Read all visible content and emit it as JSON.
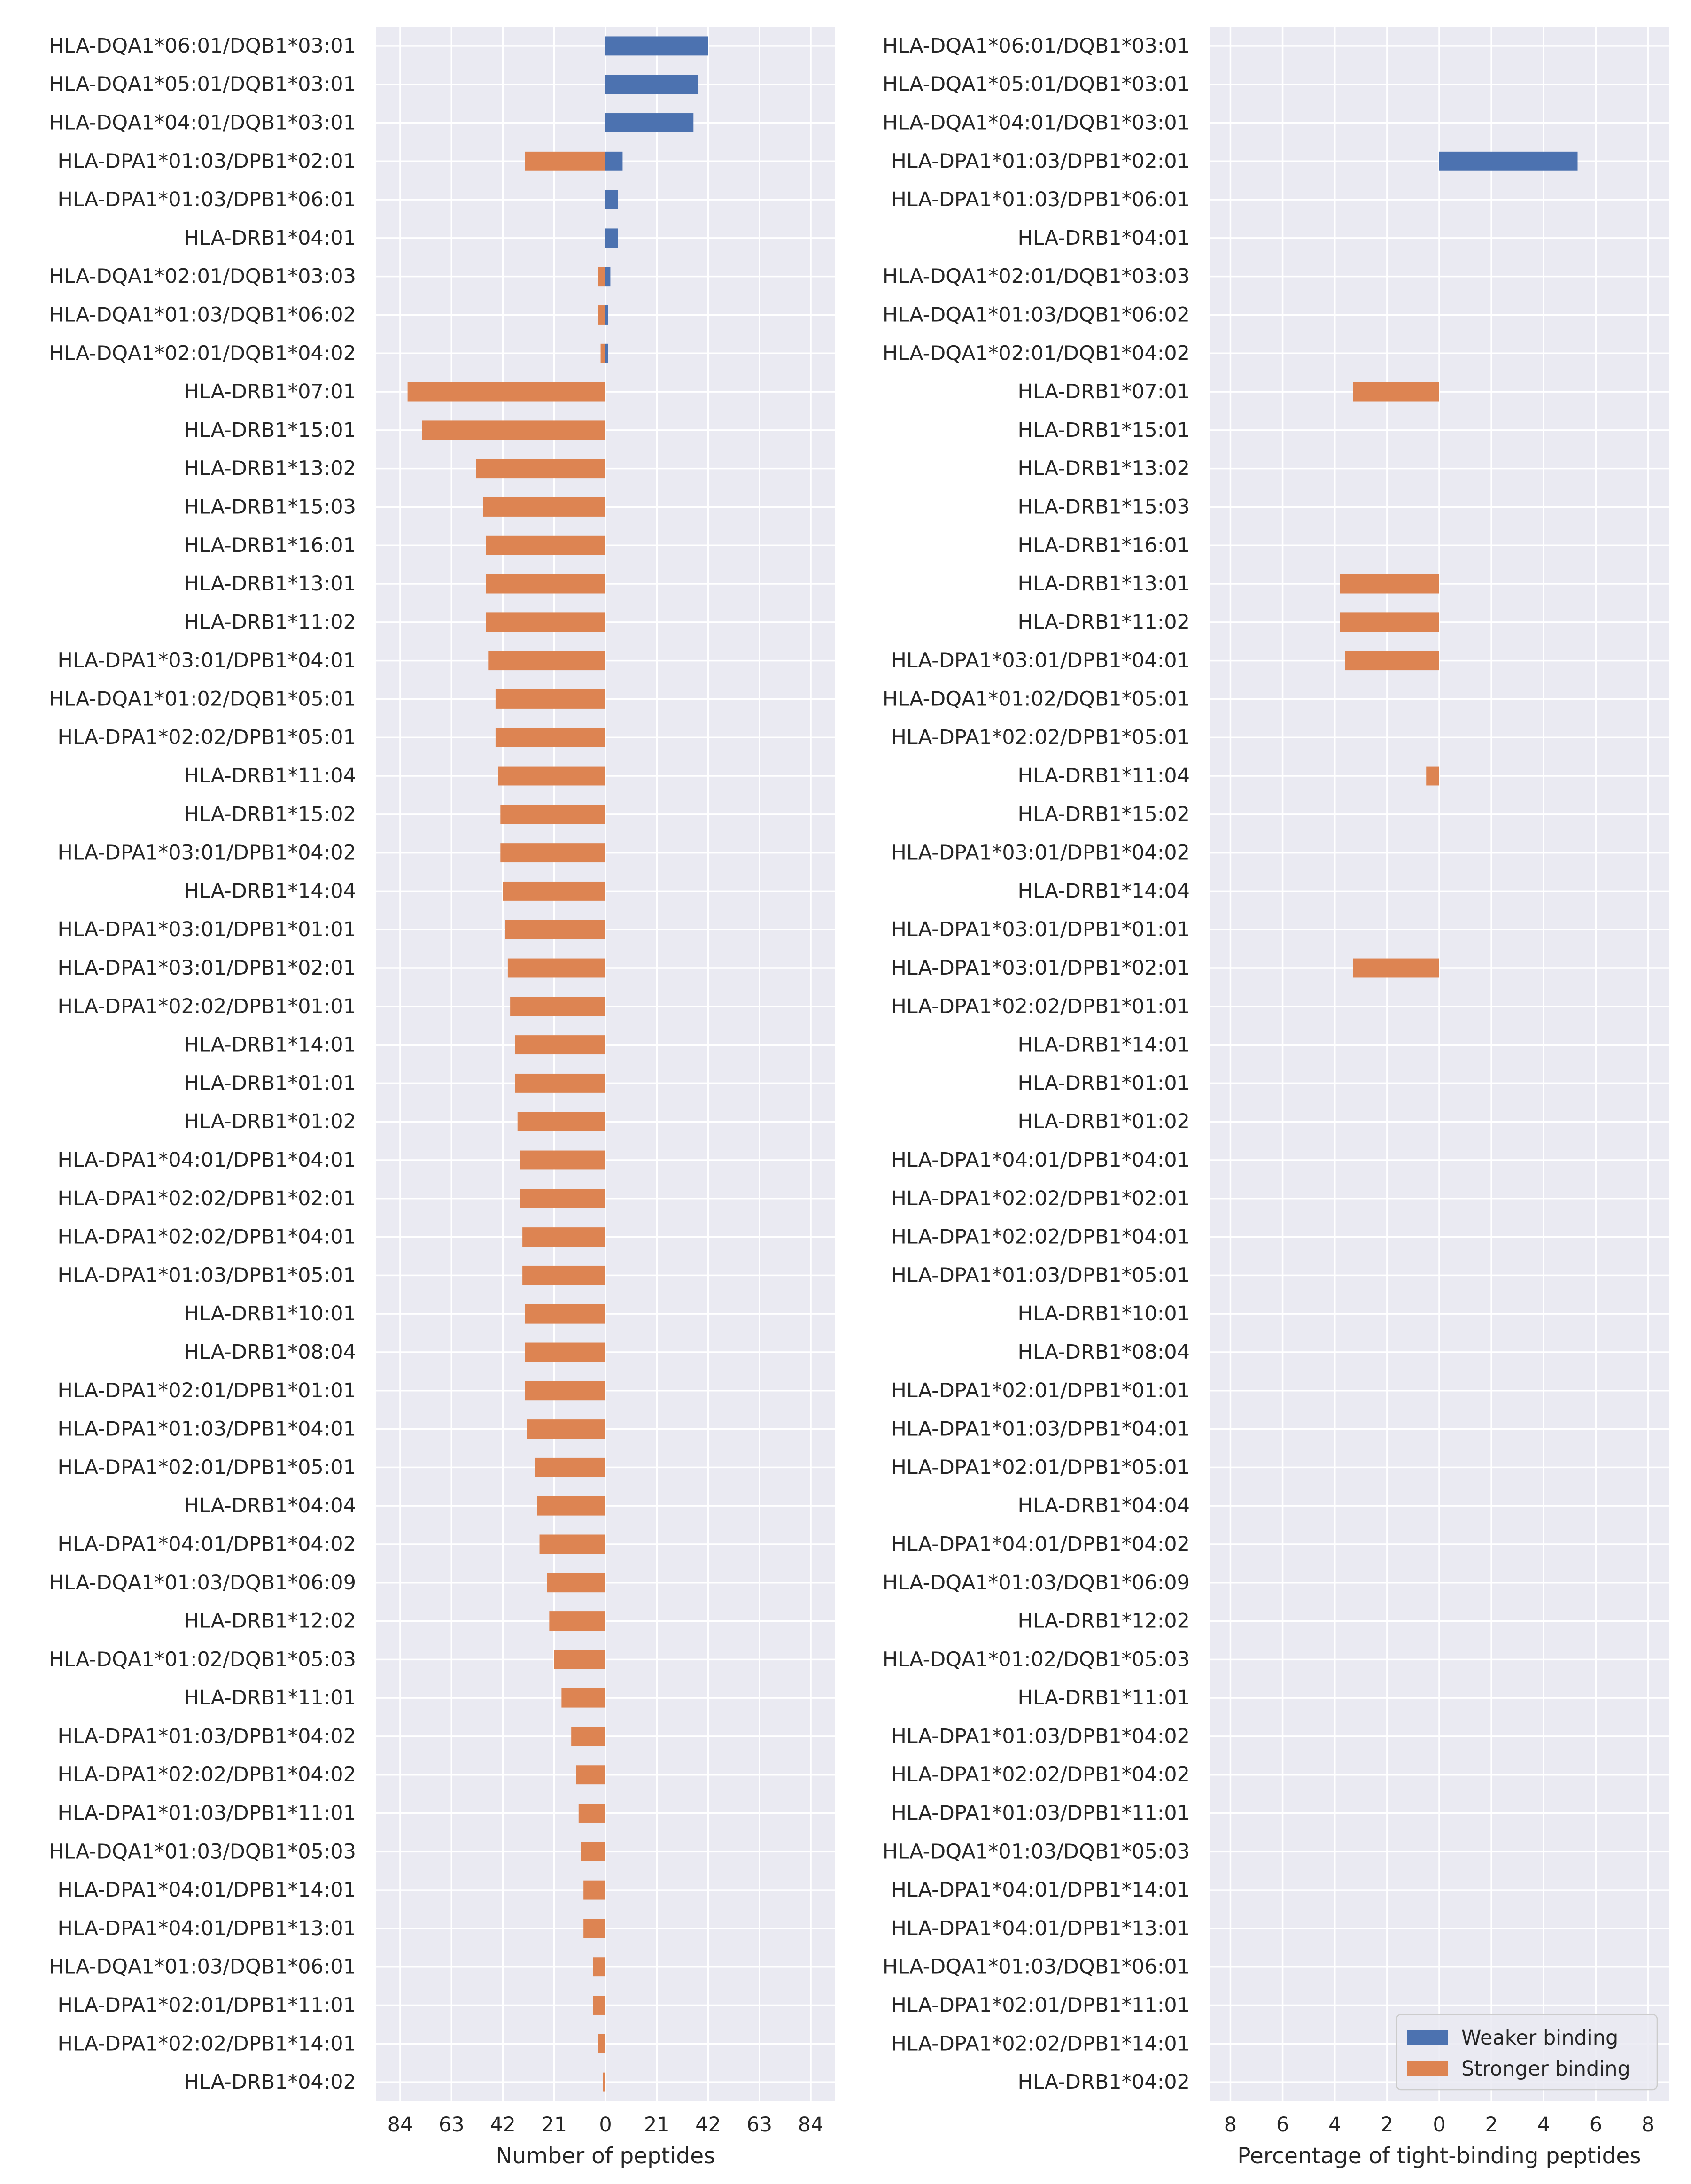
{
  "colors": {
    "plot_bg": "#eaeaf2",
    "grid": "#ffffff",
    "text": "#262626",
    "weaker": "#4c72b0",
    "stronger": "#dd8452"
  },
  "chart_data": [
    {
      "type": "bar",
      "orientation": "horizontal",
      "diverging": true,
      "xlabel": "Number of peptides",
      "xlim": [
        -94,
        94
      ],
      "xticks": [
        -84,
        -63,
        -42,
        -21,
        0,
        21,
        42,
        63,
        84
      ],
      "xtick_labels": [
        "84",
        "63",
        "42",
        "21",
        "0",
        "21",
        "42",
        "63",
        "84"
      ],
      "grid": true,
      "categories": [
        "HLA-DQA1*06:01/DQB1*03:01",
        "HLA-DQA1*05:01/DQB1*03:01",
        "HLA-DQA1*04:01/DQB1*03:01",
        "HLA-DPA1*01:03/DPB1*02:01",
        "HLA-DPA1*01:03/DPB1*06:01",
        "HLA-DRB1*04:01",
        "HLA-DQA1*02:01/DQB1*03:03",
        "HLA-DQA1*01:03/DQB1*06:02",
        "HLA-DQA1*02:01/DQB1*04:02",
        "HLA-DRB1*07:01",
        "HLA-DRB1*15:01",
        "HLA-DRB1*13:02",
        "HLA-DRB1*15:03",
        "HLA-DRB1*16:01",
        "HLA-DRB1*13:01",
        "HLA-DRB1*11:02",
        "HLA-DPA1*03:01/DPB1*04:01",
        "HLA-DQA1*01:02/DQB1*05:01",
        "HLA-DPA1*02:02/DPB1*05:01",
        "HLA-DRB1*11:04",
        "HLA-DRB1*15:02",
        "HLA-DPA1*03:01/DPB1*04:02",
        "HLA-DRB1*14:04",
        "HLA-DPA1*03:01/DPB1*01:01",
        "HLA-DPA1*03:01/DPB1*02:01",
        "HLA-DPA1*02:02/DPB1*01:01",
        "HLA-DRB1*14:01",
        "HLA-DRB1*01:01",
        "HLA-DRB1*01:02",
        "HLA-DPA1*04:01/DPB1*04:01",
        "HLA-DPA1*02:02/DPB1*02:01",
        "HLA-DPA1*02:02/DPB1*04:01",
        "HLA-DPA1*01:03/DPB1*05:01",
        "HLA-DRB1*10:01",
        "HLA-DRB1*08:04",
        "HLA-DPA1*02:01/DPB1*01:01",
        "HLA-DPA1*01:03/DPB1*04:01",
        "HLA-DPA1*02:01/DPB1*05:01",
        "HLA-DRB1*04:04",
        "HLA-DPA1*04:01/DPB1*04:02",
        "HLA-DQA1*01:03/DQB1*06:09",
        "HLA-DRB1*12:02",
        "HLA-DQA1*01:02/DQB1*05:03",
        "HLA-DRB1*11:01",
        "HLA-DPA1*01:03/DPB1*04:02",
        "HLA-DPA1*02:02/DPB1*04:02",
        "HLA-DPA1*01:03/DPB1*11:01",
        "HLA-DQA1*01:03/DQB1*05:03",
        "HLA-DPA1*04:01/DPB1*14:01",
        "HLA-DPA1*04:01/DPB1*13:01",
        "HLA-DQA1*01:03/DQB1*06:01",
        "HLA-DPA1*02:01/DPB1*11:01",
        "HLA-DPA1*02:02/DPB1*14:01",
        "HLA-DRB1*04:02"
      ],
      "series": [
        {
          "name": "Weaker binding",
          "side": "right",
          "values": [
            42,
            38,
            36,
            7,
            5,
            5,
            2,
            1,
            1,
            0,
            0,
            0,
            0,
            0,
            0,
            0,
            0,
            0,
            0,
            0,
            0,
            0,
            0,
            0,
            0,
            0,
            0,
            0,
            0,
            0,
            0,
            0,
            0,
            0,
            0,
            0,
            0,
            0,
            0,
            0,
            0,
            0,
            0,
            0,
            0,
            0,
            0,
            0,
            0,
            0,
            0,
            0,
            0,
            0
          ]
        },
        {
          "name": "Stronger binding",
          "side": "left",
          "values": [
            0,
            0,
            0,
            33,
            0,
            0,
            3,
            3,
            2,
            81,
            75,
            53,
            50,
            49,
            49,
            49,
            48,
            45,
            45,
            44,
            43,
            43,
            42,
            41,
            40,
            39,
            37,
            37,
            36,
            35,
            35,
            34,
            34,
            33,
            33,
            33,
            32,
            29,
            28,
            27,
            24,
            23,
            21,
            18,
            14,
            12,
            11,
            10,
            9,
            9,
            5,
            5,
            3,
            1
          ]
        }
      ]
    },
    {
      "type": "bar",
      "orientation": "horizontal",
      "diverging": true,
      "xlabel": "Percentage of tight-binding peptides",
      "xlim": [
        -8.8,
        8.8
      ],
      "xticks": [
        -8,
        -6,
        -4,
        -2,
        0,
        2,
        4,
        6,
        8
      ],
      "xtick_labels": [
        "8",
        "6",
        "4",
        "2",
        "0",
        "2",
        "4",
        "6",
        "8"
      ],
      "grid": true,
      "legend_position": "lower-right",
      "legend": [
        "Weaker binding",
        "Stronger binding"
      ],
      "series": [
        {
          "name": "Weaker binding",
          "side": "right",
          "values": [
            0,
            0,
            0,
            5.3,
            0,
            0,
            0,
            0,
            0,
            0,
            0,
            0,
            0,
            0,
            0,
            0,
            0,
            0,
            0,
            0,
            0,
            0,
            0,
            0,
            0,
            0,
            0,
            0,
            0,
            0,
            0,
            0,
            0,
            0,
            0,
            0,
            0,
            0,
            0,
            0,
            0,
            0,
            0,
            0,
            0,
            0,
            0,
            0,
            0,
            0,
            0,
            0,
            0,
            0
          ]
        },
        {
          "name": "Stronger binding",
          "side": "left",
          "values": [
            0,
            0,
            0,
            0,
            0,
            0,
            0,
            0,
            0,
            3.3,
            0,
            0,
            0,
            0,
            3.8,
            3.8,
            3.6,
            0,
            0,
            0.5,
            0,
            0,
            0,
            0,
            3.3,
            0,
            0,
            0,
            0,
            0,
            0,
            0,
            0,
            0,
            0,
            0,
            0,
            0,
            0,
            0,
            0,
            0,
            0,
            0,
            0,
            0,
            0,
            0,
            0,
            0,
            0,
            0,
            0,
            0
          ]
        }
      ]
    }
  ]
}
